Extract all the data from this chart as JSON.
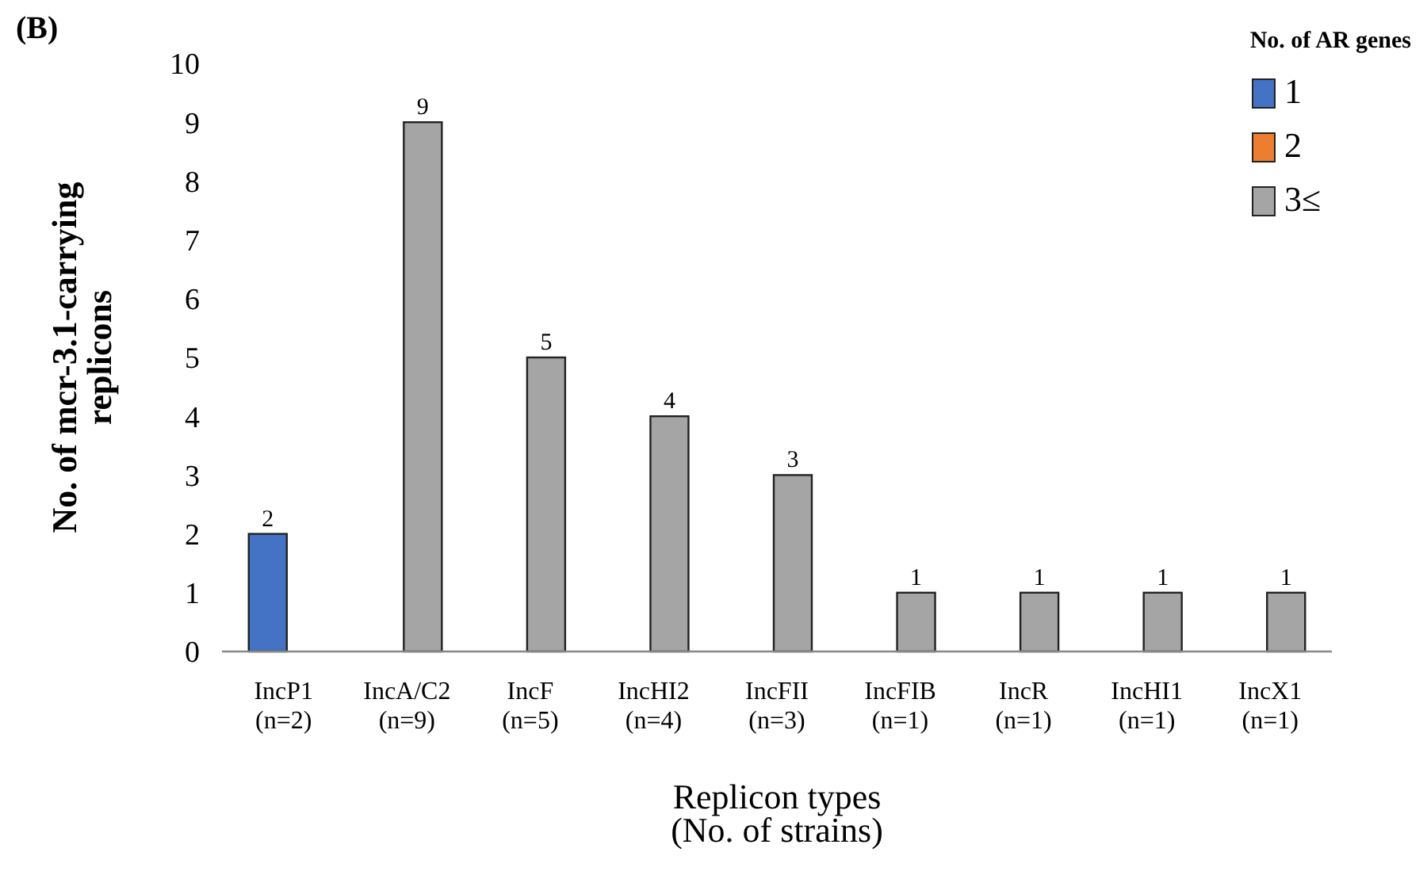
{
  "chart_data": {
    "type": "bar",
    "title": "(B)",
    "xlabel": "Replicon types\n(No. of strains)",
    "ylabel": "No. of mcr-3.1-carrying\nreplicons",
    "legend_title": "No. of AR genes",
    "legend": "top right",
    "categories": [
      "IncP1\n(n=2)",
      "IncA/C2\n(n=9)",
      "IncF\n(n=5)",
      "IncHI2\n(n=4)",
      "IncFII\n(n=3)",
      "IncFIB\n(n=1)",
      "IncR\n(n=1)",
      "IncHI1\n(n=1)",
      "IncX1\n(n=1)"
    ],
    "series": [
      {
        "name": "1",
        "color": "#4472c4",
        "values": [
          2,
          0,
          0,
          0,
          0,
          0,
          0,
          0,
          0
        ],
        "value_labels": [
          "2",
          null,
          null,
          null,
          null,
          null,
          null,
          null,
          null
        ]
      },
      {
        "name": "2",
        "color": "#ed7d31",
        "values": [
          0,
          0,
          0,
          0,
          0,
          0,
          0,
          0,
          0
        ],
        "value_labels": [
          null,
          null,
          null,
          null,
          null,
          null,
          null,
          null,
          null
        ]
      },
      {
        "name": "3≤",
        "color": "#a5a5a5",
        "values": [
          0,
          9,
          5,
          4,
          3,
          1,
          1,
          1,
          1
        ],
        "value_labels": [
          null,
          "9",
          "5",
          "4",
          "3",
          "1",
          "1",
          "1",
          "1"
        ]
      }
    ],
    "ylim": [
      0,
      10
    ],
    "yticks": [
      0,
      1,
      2,
      3,
      4,
      5,
      6,
      7,
      8,
      9,
      10
    ],
    "grid": false
  }
}
